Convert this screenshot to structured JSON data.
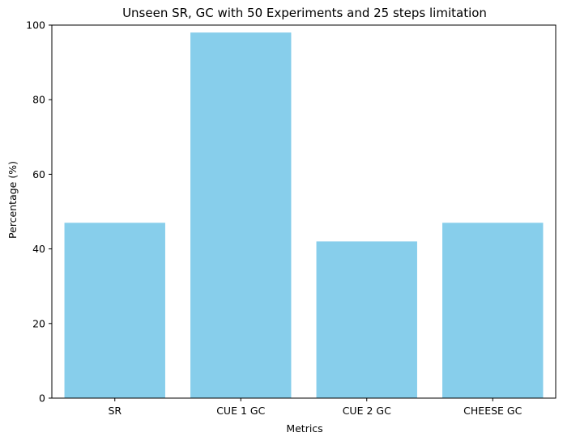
{
  "chart_data": {
    "type": "bar",
    "title": "Unseen SR, GC with 50 Experiments and 25 steps limitation",
    "xlabel": "Metrics",
    "ylabel": "Percentage (%)",
    "categories": [
      "SR",
      "CUE 1 GC",
      "CUE 2 GC",
      "CHEESE GC"
    ],
    "values": [
      47,
      98,
      42,
      47
    ],
    "ylim": [
      0,
      100
    ],
    "yticks": [
      0,
      20,
      40,
      60,
      80,
      100
    ],
    "grid": false,
    "legend": "none",
    "bar_color": "#87ceeb"
  }
}
